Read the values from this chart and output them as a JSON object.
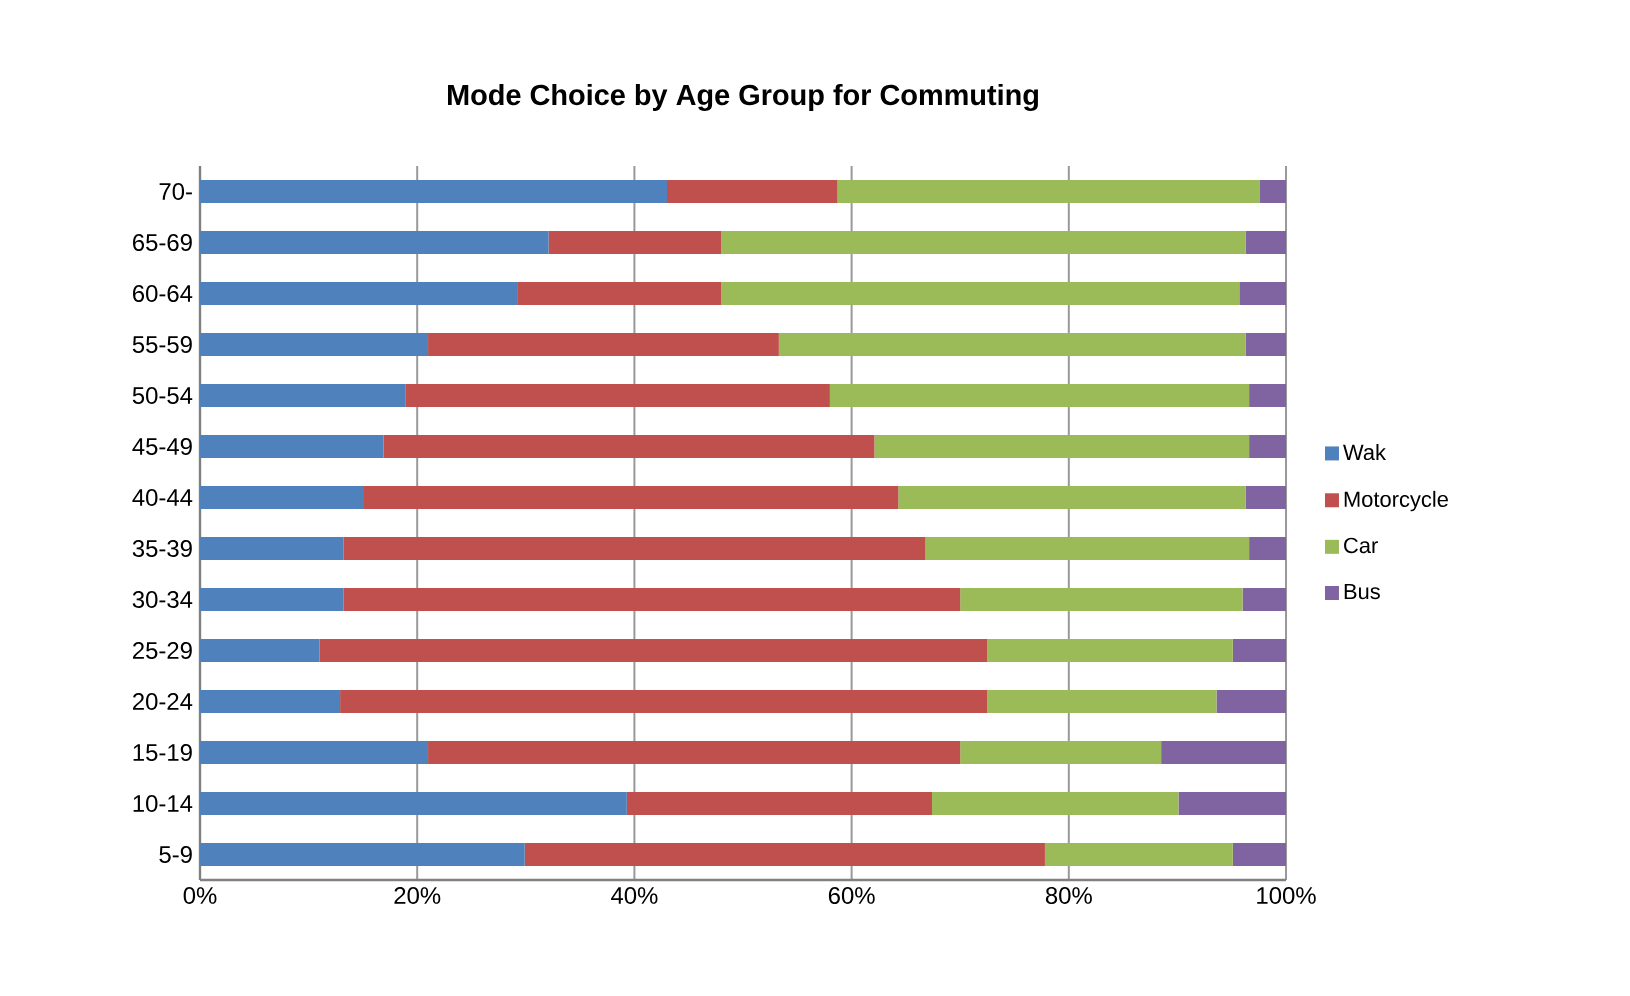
{
  "chart_data": {
    "type": "bar",
    "orientation": "horizontal",
    "stacked": true,
    "title": "Mode Choice by Age Group for Commuting",
    "categories": [
      "70-",
      "65-69",
      "60-64",
      "55-59",
      "50-54",
      "45-49",
      "40-44",
      "35-39",
      "30-34",
      "25-29",
      "20-24",
      "15-19",
      "10-14",
      "5-9"
    ],
    "series": [
      {
        "name": "Wak",
        "color": "#4f81bd",
        "values": [
          43,
          32.1,
          29.2,
          21,
          18.9,
          16.9,
          15.1,
          13.2,
          13.2,
          11,
          12.9,
          21,
          39.3,
          29.9
        ]
      },
      {
        "name": "Motorcycle",
        "color": "#c0504d",
        "values": [
          15.7,
          15.9,
          18.8,
          32.3,
          39.1,
          45.2,
          49.2,
          53.6,
          56.8,
          61.5,
          59.6,
          49,
          28.1,
          47.9
        ]
      },
      {
        "name": "Car",
        "color": "#9bbb59",
        "values": [
          38.9,
          48.3,
          47.7,
          43,
          38.6,
          34.5,
          32,
          29.8,
          26,
          22.6,
          21.1,
          18.5,
          22.7,
          17.3
        ]
      },
      {
        "name": "Bus",
        "color": "#8064a2",
        "values": [
          2.4,
          3.7,
          4.3,
          3.7,
          3.4,
          3.4,
          3.7,
          3.4,
          4,
          4.9,
          6.4,
          11.5,
          9.9,
          4.9
        ]
      }
    ],
    "xlim": [
      0,
      100
    ],
    "xticks": [
      {
        "value": 0,
        "label": "0%"
      },
      {
        "value": 20,
        "label": "20%"
      },
      {
        "value": 40,
        "label": "40%"
      },
      {
        "value": 60,
        "label": "60%"
      },
      {
        "value": 80,
        "label": "80%"
      },
      {
        "value": 100,
        "label": "100%"
      }
    ],
    "grid": "x",
    "legend": "right"
  }
}
